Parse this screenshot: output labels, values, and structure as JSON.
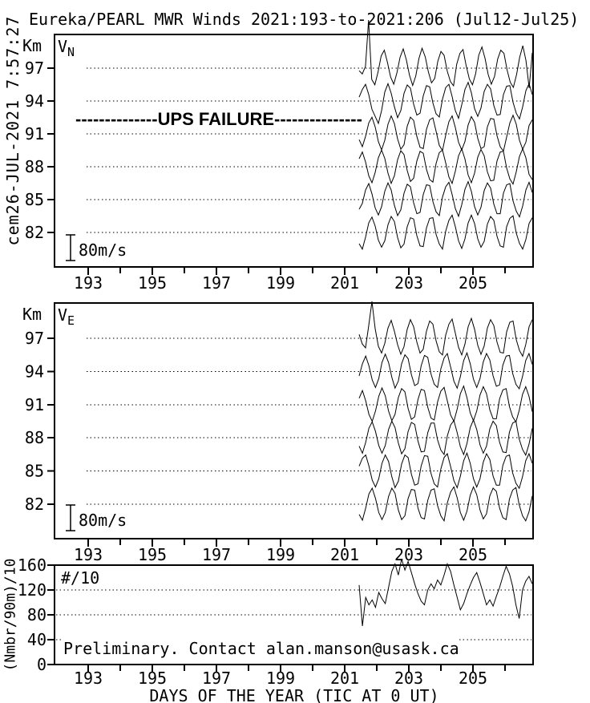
{
  "page": {
    "background": "#ffffff",
    "foreground": "#000000"
  },
  "header": {
    "title": "Eureka/PEARL MWR Winds 2021:193-to-2021:206 (Jul12-Jul25)",
    "timestamp_side": "cem26-JUL-2021  7:57:27"
  },
  "annotations": {
    "ups_failure": "--------------UPS FAILURE---------------",
    "scale_bar_label": "80m/s"
  },
  "footer": {
    "note": "Preliminary. Contact alan.manson@usask.ca",
    "xaxis_title": "DAYS OF THE YEAR (TIC AT 0 UT)"
  },
  "axes": {
    "y_unit_label": "Km",
    "count_axis_title": "(Nmbr/90m)/10",
    "x_tick_labels": [
      "193",
      "195",
      "197",
      "199",
      "201",
      "203",
      "205"
    ],
    "x_major_days": [
      193,
      195,
      197,
      199,
      201,
      203,
      205
    ],
    "x_minor_days": [
      194,
      196,
      198,
      200,
      202,
      204,
      206
    ],
    "x_domain": [
      191.95,
      206.88
    ],
    "wind_y_ticks": [
      "97",
      "94",
      "91",
      "88",
      "85",
      "82"
    ],
    "wind_y_values": [
      97,
      94,
      91,
      88,
      85,
      82
    ],
    "count_y_ticks": [
      "160",
      "120",
      "80",
      "40",
      "0"
    ],
    "count_y_values": [
      160,
      120,
      80,
      40,
      0
    ],
    "count_gridline_values": [
      120,
      80,
      40
    ]
  },
  "chart_data": [
    {
      "type": "line",
      "name": "northward-wind",
      "label_main": "V",
      "label_sub": "N",
      "units": "m/s",
      "scale_bar_mps": 80,
      "x_start": 201.45,
      "x_end": 206.85,
      "series": [
        {
          "altitude_km": 97,
          "wind_mps": [
            -8,
            -18,
            5,
            150,
            -35,
            -52,
            -12,
            38,
            56,
            18,
            -28,
            -50,
            -15,
            34,
            60,
            26,
            -22,
            -54,
            -24,
            30,
            62,
            35,
            -12,
            -46,
            -32,
            22,
            52,
            40,
            -10,
            -42,
            -55,
            12,
            46,
            58,
            8,
            -34,
            -52,
            -18,
            40,
            66,
            30,
            -20,
            -50,
            -26,
            28,
            56,
            46,
            -6,
            -44,
            -60,
            -20,
            34,
            70,
            24,
            -62,
            48
          ]
        },
        {
          "altitude_km": 94,
          "wind_mps": [
            12,
            36,
            52,
            20,
            -26,
            -48,
            -70,
            -30,
            28,
            54,
            24,
            -18,
            -52,
            -30,
            24,
            50,
            40,
            -10,
            -44,
            -38,
            16,
            48,
            44,
            -6,
            -40,
            -50,
            6,
            42,
            52,
            14,
            -30,
            -54,
            -12,
            36,
            58,
            26,
            -24,
            -48,
            -22,
            30,
            52,
            38,
            -14,
            -44,
            -42,
            20,
            46,
            48,
            -4,
            -38,
            -56,
            -18,
            32,
            54,
            20
          ]
        },
        {
          "altitude_km": 91,
          "wind_mps": [
            -18,
            -40,
            -8,
            34,
            52,
            22,
            -24,
            -50,
            -20,
            30,
            56,
            32,
            -16,
            -48,
            -34,
            24,
            52,
            42,
            -8,
            -42,
            -46,
            14,
            44,
            50,
            8,
            -36,
            -52,
            -4,
            38,
            56,
            20,
            -26,
            -50,
            -24,
            28,
            54,
            36,
            -14,
            -46,
            -40,
            22,
            48,
            46,
            -6,
            -40,
            -54,
            -10,
            34,
            58,
            30,
            -20,
            -48,
            -26,
            26,
            44
          ]
        },
        {
          "altitude_km": 88,
          "wind_mps": [
            25,
            46,
            15,
            -28,
            -50,
            -18,
            28,
            52,
            26,
            -20,
            -52,
            -28,
            22,
            50,
            38,
            -12,
            -46,
            -36,
            18,
            48,
            42,
            -8,
            -40,
            -48,
            10,
            44,
            52,
            12,
            -32,
            -52,
            -14,
            34,
            56,
            24,
            -26,
            -50,
            -20,
            30,
            54,
            34,
            -16,
            -44,
            -42,
            18,
            46,
            48,
            -4,
            -38,
            -54,
            -16,
            32,
            56,
            28,
            -24,
            -40
          ]
        },
        {
          "altitude_km": 85,
          "wind_mps": [
            -30,
            -12,
            30,
            50,
            18,
            -26,
            -48,
            -22,
            26,
            52,
            30,
            -18,
            -50,
            -32,
            20,
            48,
            40,
            -10,
            -44,
            -40,
            16,
            46,
            44,
            -6,
            -38,
            -50,
            8,
            40,
            54,
            16,
            -28,
            -52,
            -16,
            32,
            56,
            26,
            -22,
            -48,
            -24,
            28,
            52,
            36,
            -14,
            -44,
            -44,
            20,
            46,
            50,
            -4,
            -36,
            -54,
            -20,
            30,
            54,
            22
          ]
        },
        {
          "altitude_km": 82,
          "wind_mps": [
            -35,
            -52,
            -15,
            30,
            48,
            20,
            -24,
            -46,
            -26,
            24,
            50,
            34,
            -16,
            -48,
            -36,
            18,
            46,
            42,
            -10,
            -42,
            -44,
            14,
            44,
            46,
            -6,
            -36,
            -52,
            4,
            38,
            54,
            18,
            -26,
            -50,
            -20,
            30,
            54,
            28,
            -20,
            -46,
            -28,
            26,
            50,
            38,
            -12,
            -42,
            -46,
            18,
            44,
            52,
            -2,
            -34,
            -52,
            -22,
            28,
            46
          ]
        }
      ]
    },
    {
      "type": "line",
      "name": "eastward-wind",
      "label_main": "V",
      "label_sub": "E",
      "units": "m/s",
      "scale_bar_mps": 80,
      "x_start": 201.45,
      "x_end": 206.85,
      "series": [
        {
          "altitude_km": 97,
          "wind_mps": [
            12,
            -18,
            -30,
            40,
            115,
            30,
            -25,
            -46,
            -16,
            32,
            56,
            22,
            -20,
            -50,
            -26,
            28,
            58,
            36,
            -12,
            -46,
            -34,
            22,
            54,
            44,
            -8,
            -42,
            -52,
            10,
            44,
            60,
            16,
            -28,
            -52,
            -18,
            36,
            62,
            28,
            -22,
            -50,
            -24,
            32,
            58,
            40,
            -12,
            -44,
            -46,
            20,
            50,
            54,
            -4,
            -38,
            -56,
            -18,
            36,
            58
          ]
        },
        {
          "altitude_km": 94,
          "wind_mps": [
            -14,
            24,
            48,
            18,
            -26,
            -50,
            -22,
            28,
            54,
            28,
            -18,
            -52,
            -30,
            24,
            52,
            40,
            -10,
            -44,
            -38,
            18,
            50,
            44,
            -8,
            -40,
            -50,
            8,
            42,
            56,
            14,
            -30,
            -52,
            -16,
            34,
            58,
            24,
            -24,
            -50,
            -22,
            30,
            56,
            36,
            -14,
            -46,
            -42,
            20,
            48,
            50,
            -6,
            -40,
            -54,
            -16,
            34,
            56,
            22
          ]
        },
        {
          "altitude_km": 91,
          "wind_mps": [
            20,
            44,
            12,
            -30,
            -52,
            -20,
            26,
            52,
            28,
            -20,
            -50,
            -30,
            22,
            50,
            40,
            -12,
            -46,
            -38,
            16,
            48,
            44,
            -8,
            -42,
            -48,
            8,
            42,
            54,
            12,
            -32,
            -52,
            -14,
            34,
            58,
            22,
            -26,
            -50,
            -20,
            30,
            56,
            34,
            -16,
            -44,
            -44,
            18,
            46,
            50,
            -6,
            -38,
            -54,
            -18,
            32,
            56,
            26,
            -22
          ]
        },
        {
          "altitude_km": 88,
          "wind_mps": [
            -26,
            -48,
            -14,
            30,
            50,
            20,
            -24,
            -48,
            -24,
            26,
            52,
            32,
            -16,
            -50,
            -34,
            20,
            48,
            42,
            -10,
            -44,
            -42,
            16,
            46,
            46,
            -6,
            -38,
            -52,
            6,
            40,
            54,
            16,
            -28,
            -52,
            -18,
            32,
            56,
            26,
            -22,
            -48,
            -26,
            28,
            52,
            38,
            -14,
            -44,
            -46,
            18,
            46,
            52,
            -4,
            -36,
            -54,
            -20,
            30
          ]
        },
        {
          "altitude_km": 85,
          "wind_mps": [
            15,
            40,
            50,
            16,
            -28,
            -50,
            -24,
            24,
            50,
            30,
            -18,
            -52,
            -32,
            22,
            50,
            42,
            -10,
            -44,
            -40,
            16,
            48,
            46,
            -8,
            -40,
            -50,
            6,
            42,
            54,
            14,
            -30,
            -52,
            -16,
            32,
            56,
            24,
            -24,
            -50,
            -24,
            28,
            54,
            36,
            -16,
            -44,
            -44,
            18,
            46,
            50,
            -6,
            -38,
            -54,
            -18,
            32,
            54,
            24
          ]
        },
        {
          "altitude_km": 82,
          "wind_mps": [
            -32,
            -50,
            -12,
            32,
            50,
            18,
            -26,
            -48,
            -26,
            24,
            50,
            34,
            -18,
            -48,
            -36,
            18,
            46,
            44,
            -12,
            -42,
            -46,
            12,
            44,
            48,
            -4,
            -36,
            -52,
            4,
            38,
            54,
            20,
            -26,
            -50,
            -22,
            28,
            54,
            30,
            -18,
            -46,
            -30,
            26,
            50,
            40,
            -12,
            -42,
            -48,
            16,
            44,
            52,
            -2,
            -36,
            -52,
            -24,
            26
          ]
        }
      ]
    },
    {
      "type": "line",
      "name": "meteor-count-rate",
      "label": "#/10",
      "x_start": 201.45,
      "x_end": 206.85,
      "ylim": [
        0,
        160
      ],
      "values": [
        128,
        62,
        108,
        96,
        104,
        92,
        116,
        106,
        98,
        124,
        150,
        162,
        144,
        170,
        152,
        166,
        148,
        130,
        114,
        102,
        96,
        120,
        130,
        122,
        136,
        128,
        144,
        162,
        150,
        128,
        108,
        88,
        98,
        114,
        128,
        140,
        148,
        132,
        114,
        96,
        104,
        94,
        110,
        124,
        142,
        158,
        146,
        126,
        96,
        74,
        120,
        134,
        142,
        130
      ]
    }
  ]
}
